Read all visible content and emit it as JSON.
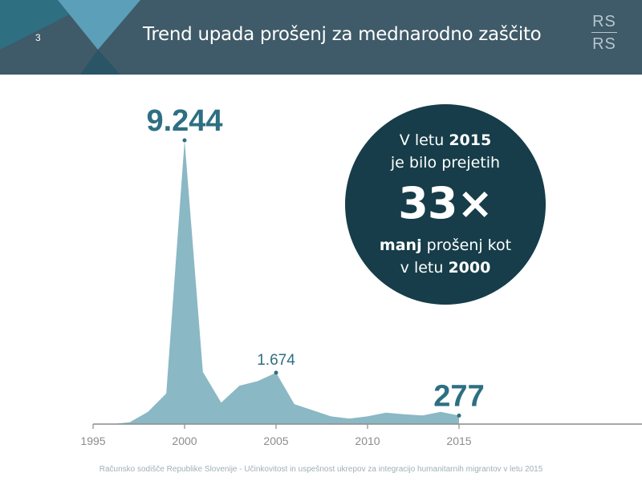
{
  "header": {
    "slide_number": "3",
    "title": "Trend upada prošenj za mednarodno zaščito",
    "logo_top": "RS",
    "logo_bottom": "RS"
  },
  "callout": {
    "line1_prefix": "V letu ",
    "line1_year": "2015",
    "line2": "je bilo prejetih",
    "multiplier": "33×",
    "line3_bold": "manj",
    "line3_rest": " prošenj kot",
    "line4_prefix": "v letu ",
    "line4_year": "2000"
  },
  "footer": {
    "text": "Računsko sodišče Republike Slovenije - Učinkovitost in uspešnost ukrepov za integracijo humanitarnih migrantov v letu 2015"
  },
  "colors": {
    "header_bg": "#3f5a68",
    "area_fill": "#8ab8c5",
    "accent": "#2e6f82",
    "bubble_bg": "#163d49",
    "axis": "#8c8c8c",
    "footer_text": "#9fb0b8"
  },
  "chart_data": {
    "type": "area",
    "x": [
      1995,
      1996,
      1997,
      1998,
      1999,
      2000,
      2001,
      2002,
      2003,
      2004,
      2005,
      2006,
      2007,
      2008,
      2009,
      2010,
      2011,
      2012,
      2013,
      2014,
      2015
    ],
    "values": [
      0,
      0,
      60,
      400,
      1000,
      9244,
      1700,
      700,
      1250,
      1400,
      1674,
      650,
      450,
      250,
      180,
      250,
      370,
      320,
      280,
      400,
      277
    ],
    "xticks": [
      1995,
      2000,
      2005,
      2010,
      2015
    ],
    "xlim": [
      1995,
      2025
    ],
    "ylim": [
      0,
      9244
    ],
    "annotations": [
      {
        "x": 2000,
        "y": 9244,
        "label": "9.244",
        "style": "large"
      },
      {
        "x": 2005,
        "y": 1674,
        "label": "1.674",
        "style": "small"
      },
      {
        "x": 2015,
        "y": 277,
        "label": "277",
        "style": "large"
      }
    ],
    "grid": false,
    "legend": "none"
  }
}
